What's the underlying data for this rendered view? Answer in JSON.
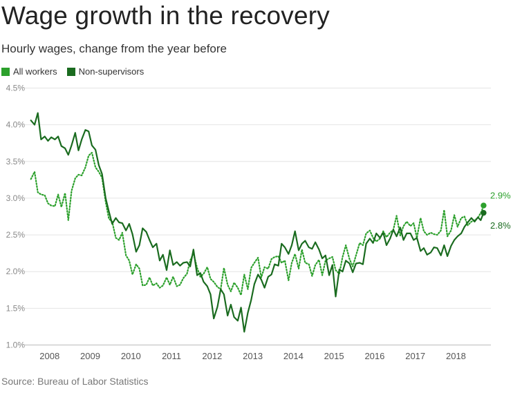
{
  "chart_data": {
    "type": "line",
    "title": "Wage growth in the recovery",
    "subtitle": "Hourly wages, change from the year before",
    "source": "Source: Bureau of Labor Statistics",
    "ylim": [
      1.0,
      4.5
    ],
    "yticks": [
      1.0,
      1.5,
      2.0,
      2.5,
      3.0,
      3.5,
      4.0,
      4.5
    ],
    "ytick_labels": [
      "1.0%",
      "1.5%",
      "2.0%",
      "2.5%",
      "3.0%",
      "3.5%",
      "4.0%",
      "4.5%"
    ],
    "xlim": [
      2007.5,
      2018.9
    ],
    "xticks": [
      2008,
      2009,
      2010,
      2011,
      2012,
      2013,
      2014,
      2015,
      2016,
      2017,
      2018
    ],
    "xtick_labels": [
      "2008",
      "2009",
      "2010",
      "2011",
      "2012",
      "2013",
      "2014",
      "2015",
      "2016",
      "2017",
      "2018"
    ],
    "grid": true,
    "legend_position": "top-left",
    "series": [
      {
        "name": "All workers",
        "color": "#2ca02c",
        "style": "dotted",
        "end_label": "2.9%",
        "end_value": 2.9,
        "points": [
          [
            2007.58,
            3.26
          ],
          [
            2007.67,
            3.36
          ],
          [
            2007.75,
            3.08
          ],
          [
            2007.83,
            3.05
          ],
          [
            2007.92,
            3.04
          ],
          [
            2008.0,
            2.93
          ],
          [
            2008.08,
            2.9
          ],
          [
            2008.17,
            2.89
          ],
          [
            2008.25,
            3.05
          ],
          [
            2008.33,
            2.88
          ],
          [
            2008.42,
            3.07
          ],
          [
            2008.5,
            2.7
          ],
          [
            2008.58,
            3.1
          ],
          [
            2008.67,
            3.27
          ],
          [
            2008.75,
            3.32
          ],
          [
            2008.83,
            3.31
          ],
          [
            2008.92,
            3.42
          ],
          [
            2009.0,
            3.58
          ],
          [
            2009.08,
            3.62
          ],
          [
            2009.17,
            3.42
          ],
          [
            2009.25,
            3.36
          ],
          [
            2009.33,
            3.28
          ],
          [
            2009.42,
            2.95
          ],
          [
            2009.5,
            2.72
          ],
          [
            2009.58,
            2.68
          ],
          [
            2009.67,
            2.46
          ],
          [
            2009.75,
            2.43
          ],
          [
            2009.83,
            2.53
          ],
          [
            2009.92,
            2.22
          ],
          [
            2010.0,
            2.15
          ],
          [
            2010.08,
            1.96
          ],
          [
            2010.17,
            2.1
          ],
          [
            2010.25,
            2.04
          ],
          [
            2010.33,
            1.81
          ],
          [
            2010.42,
            1.82
          ],
          [
            2010.5,
            1.92
          ],
          [
            2010.58,
            1.81
          ],
          [
            2010.67,
            1.84
          ],
          [
            2010.75,
            1.78
          ],
          [
            2010.83,
            1.81
          ],
          [
            2010.92,
            1.92
          ],
          [
            2011.0,
            1.82
          ],
          [
            2011.08,
            1.93
          ],
          [
            2011.17,
            1.8
          ],
          [
            2011.25,
            1.82
          ],
          [
            2011.33,
            1.91
          ],
          [
            2011.42,
            1.97
          ],
          [
            2011.5,
            2.15
          ],
          [
            2011.58,
            2.25
          ],
          [
            2011.67,
            2.05
          ],
          [
            2011.75,
            1.93
          ],
          [
            2011.83,
            1.97
          ],
          [
            2011.92,
            2.06
          ],
          [
            2012.0,
            1.9
          ],
          [
            2012.08,
            1.86
          ],
          [
            2012.17,
            1.79
          ],
          [
            2012.25,
            1.76
          ],
          [
            2012.33,
            2.05
          ],
          [
            2012.42,
            1.82
          ],
          [
            2012.5,
            1.73
          ],
          [
            2012.58,
            1.85
          ],
          [
            2012.67,
            1.78
          ],
          [
            2012.75,
            1.68
          ],
          [
            2012.83,
            1.96
          ],
          [
            2012.92,
            1.76
          ],
          [
            2013.0,
            2.05
          ],
          [
            2013.08,
            2.12
          ],
          [
            2013.17,
            2.19
          ],
          [
            2013.25,
            1.92
          ],
          [
            2013.33,
            2.06
          ],
          [
            2013.42,
            2.04
          ],
          [
            2013.5,
            2.17
          ],
          [
            2013.58,
            2.2
          ],
          [
            2013.67,
            2.21
          ],
          [
            2013.75,
            2.12
          ],
          [
            2013.83,
            2.15
          ],
          [
            2013.92,
            1.88
          ],
          [
            2014.0,
            2.12
          ],
          [
            2014.08,
            2.24
          ],
          [
            2014.17,
            2.04
          ],
          [
            2014.25,
            2.3
          ],
          [
            2014.33,
            2.12
          ],
          [
            2014.42,
            2.1
          ],
          [
            2014.5,
            1.94
          ],
          [
            2014.58,
            2.09
          ],
          [
            2014.67,
            2.16
          ],
          [
            2014.75,
            1.95
          ],
          [
            2014.83,
            2.15
          ],
          [
            2014.92,
            2.18
          ],
          [
            2015.0,
            2.2
          ],
          [
            2015.08,
            2.02
          ],
          [
            2015.17,
            1.97
          ],
          [
            2015.25,
            2.2
          ],
          [
            2015.33,
            2.36
          ],
          [
            2015.42,
            2.17
          ],
          [
            2015.5,
            2.07
          ],
          [
            2015.58,
            2.22
          ],
          [
            2015.67,
            2.39
          ],
          [
            2015.75,
            2.36
          ],
          [
            2015.83,
            2.52
          ],
          [
            2015.92,
            2.56
          ],
          [
            2016.0,
            2.46
          ],
          [
            2016.08,
            2.41
          ],
          [
            2016.17,
            2.45
          ],
          [
            2016.25,
            2.55
          ],
          [
            2016.33,
            2.47
          ],
          [
            2016.42,
            2.53
          ],
          [
            2016.5,
            2.57
          ],
          [
            2016.58,
            2.76
          ],
          [
            2016.67,
            2.49
          ],
          [
            2016.75,
            2.62
          ],
          [
            2016.83,
            2.68
          ],
          [
            2016.92,
            2.62
          ],
          [
            2017.0,
            2.66
          ],
          [
            2017.08,
            2.46
          ],
          [
            2017.17,
            2.73
          ],
          [
            2017.25,
            2.55
          ],
          [
            2017.33,
            2.5
          ],
          [
            2017.42,
            2.53
          ],
          [
            2017.5,
            2.51
          ],
          [
            2017.58,
            2.5
          ],
          [
            2017.67,
            2.56
          ],
          [
            2017.75,
            2.84
          ],
          [
            2017.83,
            2.48
          ],
          [
            2017.92,
            2.56
          ],
          [
            2018.0,
            2.77
          ],
          [
            2018.08,
            2.61
          ],
          [
            2018.17,
            2.73
          ],
          [
            2018.25,
            2.75
          ],
          [
            2018.33,
            2.63
          ],
          [
            2018.42,
            2.68
          ],
          [
            2018.5,
            2.7
          ],
          [
            2018.58,
            2.73
          ],
          [
            2018.67,
            2.82
          ],
          [
            2018.72,
            2.9
          ]
        ]
      },
      {
        "name": "Non-supervisors",
        "color": "#1a6b1f",
        "style": "solid",
        "end_label": "2.8%",
        "end_value": 2.8,
        "points": [
          [
            2007.58,
            4.06
          ],
          [
            2007.67,
            4.0
          ],
          [
            2007.75,
            4.16
          ],
          [
            2007.83,
            3.8
          ],
          [
            2007.92,
            3.84
          ],
          [
            2008.0,
            3.78
          ],
          [
            2008.08,
            3.83
          ],
          [
            2008.17,
            3.8
          ],
          [
            2008.25,
            3.84
          ],
          [
            2008.33,
            3.71
          ],
          [
            2008.42,
            3.68
          ],
          [
            2008.5,
            3.59
          ],
          [
            2008.58,
            3.72
          ],
          [
            2008.67,
            3.89
          ],
          [
            2008.75,
            3.65
          ],
          [
            2008.83,
            3.8
          ],
          [
            2008.92,
            3.93
          ],
          [
            2009.0,
            3.91
          ],
          [
            2009.08,
            3.72
          ],
          [
            2009.17,
            3.66
          ],
          [
            2009.25,
            3.45
          ],
          [
            2009.33,
            3.33
          ],
          [
            2009.42,
            3.0
          ],
          [
            2009.5,
            2.82
          ],
          [
            2009.58,
            2.65
          ],
          [
            2009.67,
            2.73
          ],
          [
            2009.75,
            2.67
          ],
          [
            2009.83,
            2.66
          ],
          [
            2009.92,
            2.56
          ],
          [
            2010.0,
            2.65
          ],
          [
            2010.08,
            2.51
          ],
          [
            2010.17,
            2.27
          ],
          [
            2010.25,
            2.36
          ],
          [
            2010.33,
            2.59
          ],
          [
            2010.42,
            2.54
          ],
          [
            2010.5,
            2.43
          ],
          [
            2010.58,
            2.33
          ],
          [
            2010.67,
            2.38
          ],
          [
            2010.75,
            2.15
          ],
          [
            2010.83,
            2.23
          ],
          [
            2010.92,
            2.02
          ],
          [
            2011.0,
            2.29
          ],
          [
            2011.08,
            2.09
          ],
          [
            2011.17,
            2.13
          ],
          [
            2011.25,
            2.08
          ],
          [
            2011.33,
            2.12
          ],
          [
            2011.42,
            2.13
          ],
          [
            2011.5,
            2.07
          ],
          [
            2011.58,
            2.3
          ],
          [
            2011.67,
            1.95
          ],
          [
            2011.75,
            1.98
          ],
          [
            2011.83,
            1.86
          ],
          [
            2011.92,
            1.8
          ],
          [
            2012.0,
            1.69
          ],
          [
            2012.08,
            1.36
          ],
          [
            2012.17,
            1.52
          ],
          [
            2012.25,
            1.76
          ],
          [
            2012.33,
            1.69
          ],
          [
            2012.42,
            1.4
          ],
          [
            2012.5,
            1.55
          ],
          [
            2012.58,
            1.38
          ],
          [
            2012.67,
            1.33
          ],
          [
            2012.75,
            1.51
          ],
          [
            2012.83,
            1.18
          ],
          [
            2012.92,
            1.44
          ],
          [
            2013.0,
            1.61
          ],
          [
            2013.08,
            1.83
          ],
          [
            2013.17,
            1.96
          ],
          [
            2013.25,
            1.89
          ],
          [
            2013.33,
            1.78
          ],
          [
            2013.42,
            1.93
          ],
          [
            2013.5,
            1.96
          ],
          [
            2013.58,
            2.1
          ],
          [
            2013.67,
            2.08
          ],
          [
            2013.75,
            2.38
          ],
          [
            2013.83,
            2.33
          ],
          [
            2013.92,
            2.24
          ],
          [
            2014.0,
            2.36
          ],
          [
            2014.08,
            2.55
          ],
          [
            2014.17,
            2.29
          ],
          [
            2014.25,
            2.38
          ],
          [
            2014.33,
            2.42
          ],
          [
            2014.42,
            2.33
          ],
          [
            2014.5,
            2.31
          ],
          [
            2014.58,
            2.4
          ],
          [
            2014.67,
            2.3
          ],
          [
            2014.75,
            2.18
          ],
          [
            2014.83,
            2.22
          ],
          [
            2014.92,
            1.95
          ],
          [
            2015.0,
            2.09
          ],
          [
            2015.08,
            1.66
          ],
          [
            2015.17,
            2.03
          ],
          [
            2015.25,
            2.0
          ],
          [
            2015.33,
            2.15
          ],
          [
            2015.42,
            2.11
          ],
          [
            2015.5,
            1.99
          ],
          [
            2015.58,
            2.11
          ],
          [
            2015.67,
            2.12
          ],
          [
            2015.75,
            2.1
          ],
          [
            2015.83,
            2.38
          ],
          [
            2015.92,
            2.45
          ],
          [
            2016.0,
            2.39
          ],
          [
            2016.08,
            2.52
          ],
          [
            2016.17,
            2.46
          ],
          [
            2016.25,
            2.53
          ],
          [
            2016.33,
            2.36
          ],
          [
            2016.42,
            2.45
          ],
          [
            2016.5,
            2.57
          ],
          [
            2016.58,
            2.48
          ],
          [
            2016.67,
            2.6
          ],
          [
            2016.75,
            2.43
          ],
          [
            2016.83,
            2.52
          ],
          [
            2016.92,
            2.52
          ],
          [
            2017.0,
            2.43
          ],
          [
            2017.08,
            2.46
          ],
          [
            2017.17,
            2.28
          ],
          [
            2017.25,
            2.32
          ],
          [
            2017.33,
            2.23
          ],
          [
            2017.42,
            2.26
          ],
          [
            2017.5,
            2.33
          ],
          [
            2017.58,
            2.32
          ],
          [
            2017.67,
            2.22
          ],
          [
            2017.75,
            2.36
          ],
          [
            2017.83,
            2.21
          ],
          [
            2017.92,
            2.35
          ],
          [
            2018.0,
            2.43
          ],
          [
            2018.08,
            2.48
          ],
          [
            2018.17,
            2.52
          ],
          [
            2018.25,
            2.61
          ],
          [
            2018.33,
            2.67
          ],
          [
            2018.42,
            2.73
          ],
          [
            2018.5,
            2.68
          ],
          [
            2018.58,
            2.74
          ],
          [
            2018.65,
            2.7
          ],
          [
            2018.72,
            2.8
          ]
        ]
      }
    ]
  }
}
